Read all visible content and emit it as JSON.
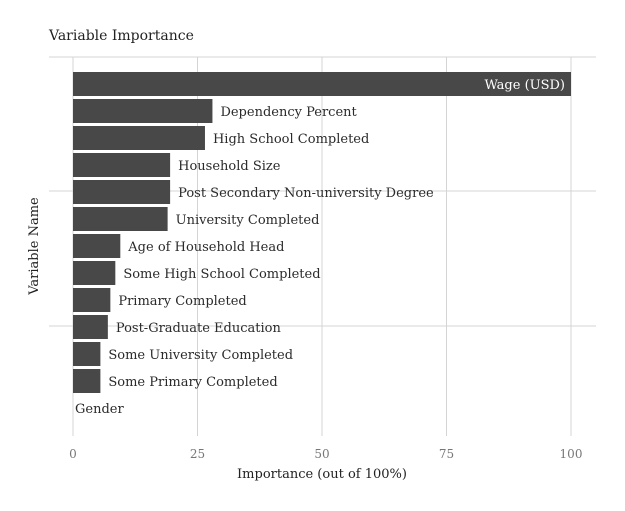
{
  "chart_data": {
    "type": "bar",
    "orientation": "horizontal",
    "title": "Variable Importance",
    "xlabel": "Importance (out of 100%)",
    "ylabel": "Variable Name",
    "xlim": [
      0,
      100
    ],
    "x_ticks": [
      0,
      25,
      50,
      75,
      100
    ],
    "grid": true,
    "bar_color": "#484848",
    "categories": [
      "Wage (USD)",
      "Dependency Percent",
      "High School Completed",
      "Household Size",
      "Post Secondary Non-university Degree",
      "University Completed",
      "Age of Household Head",
      "Some High School Completed",
      "Primary Completed",
      "Post-Graduate Education",
      "Some University Completed",
      "Some Primary Completed",
      "Gender"
    ],
    "values": [
      100,
      28,
      26.5,
      19.5,
      19.5,
      19,
      9.5,
      8.5,
      7.5,
      7,
      5.5,
      5.5,
      0
    ]
  }
}
